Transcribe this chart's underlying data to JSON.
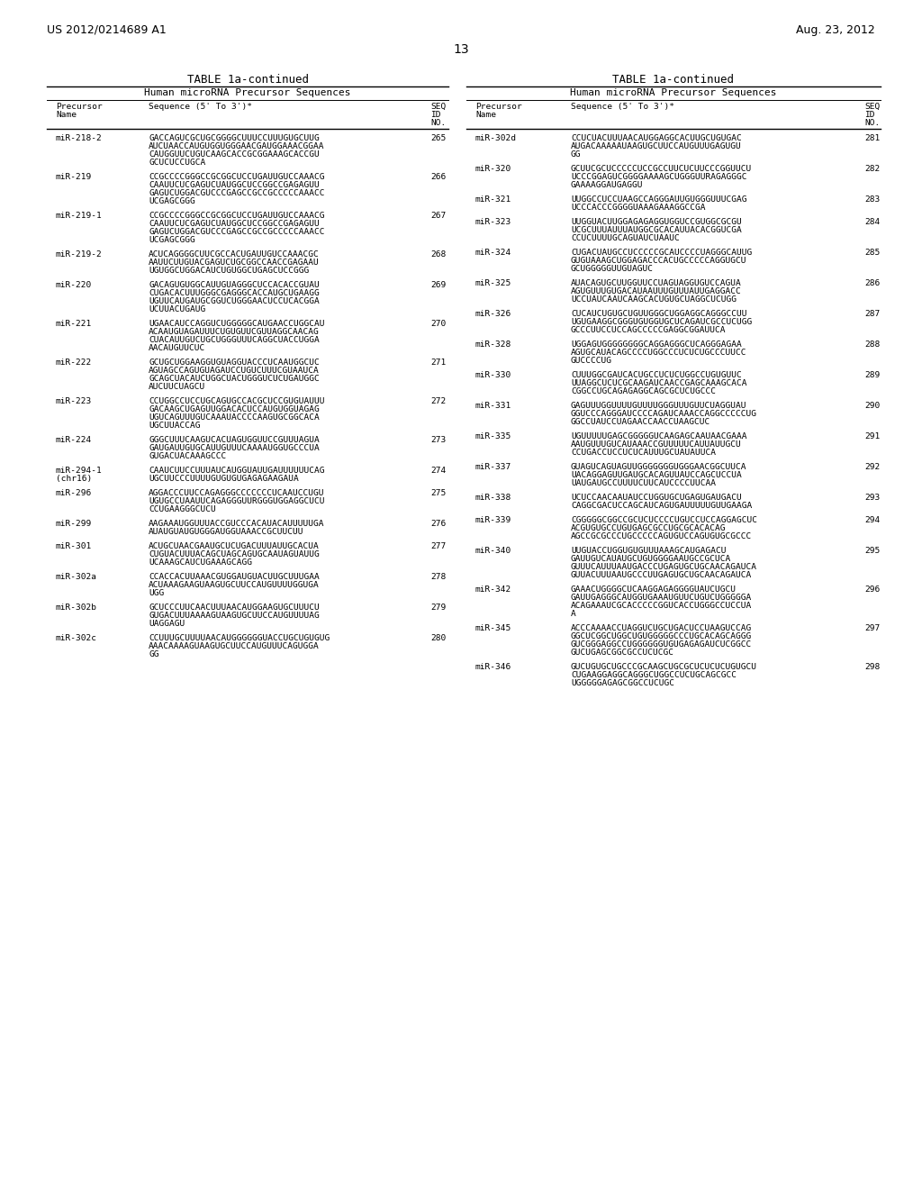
{
  "header_left": "US 2012/0214689 A1",
  "header_right": "Aug. 23, 2012",
  "page_number": "13",
  "table_title": "TABLE 1a-continued",
  "table_subtitle": "Human microRNA Precursor Sequences",
  "left_entries": [
    {
      "name": "miR-218-2",
      "seq_lines": [
        "GACCAGUCGCUGCGGGGCUUUCCUUUGUGCUUG",
        "AUCUAACCAUGUGGUGGGAACGAUGGAAACGGAA",
        "CAUGGUUCUGUCAAGCACCGCGGAAAGCACCGU",
        "GCUCUCCUGCA"
      ],
      "seq_id": "265"
    },
    {
      "name": "miR-219",
      "seq_lines": [
        "CCGCCCCGGGCCGCGGCUCCUGAUUGUCCAAACG",
        "CAAUUCUCGAGUCUAUGGCUCCGGCCGAGAGUU",
        "GAGUCUGGACGUCCCGAGCCGCCGCCCCCAAACC",
        "UCGAGCGGG"
      ],
      "seq_id": "266"
    },
    {
      "name": "miR-219-1",
      "seq_lines": [
        "CCGCCCCGGGCCGCGGCUCCUGAUUGUCCAAACG",
        "CAAUUCUCGAGUCUAUGGCUCCGGCCGAGAGUU",
        "GAGUCUGGACGUCCCGAGCCGCCGCCCCCAAACC",
        "UCGAGCGGG"
      ],
      "seq_id": "267"
    },
    {
      "name": "miR-219-2",
      "seq_lines": [
        "ACUCAGGGGCUUCGCCACUGAUUGUCCAAACGC",
        "AAUUCUUGUACGAGUCUGCGGCCAACCGAGAAU",
        "UGUGGCUGGACAUCUGUGGCUGAGCUCCGGG"
      ],
      "seq_id": "268"
    },
    {
      "name": "miR-220",
      "seq_lines": [
        "GACAGUGUGGCAUUGUAGGGCUCCACACCGUAU",
        "CUGACACUUUGGGCGAGGGCACCAUGCUGAAGG",
        "UGUUCAUGAUGCGGUCUGGGAACUCCUCACGGA",
        "UCUUACUGAUG"
      ],
      "seq_id": "269"
    },
    {
      "name": "miR-221",
      "seq_lines": [
        "UGAACAUCCAGGUCUGGGGGCAUGAACCUGGCAU",
        "ACAAUGUAGAUUUCUGUGUUCGUUAGGCAACAG",
        "CUACAUUGUCUGCUGGGUUUCAGGCUACCUGGA",
        "AACAUGUUCUC"
      ],
      "seq_id": "270"
    },
    {
      "name": "miR-222",
      "seq_lines": [
        "GCUGCUGGAAGGUGUAGGUACCCUCAAUGGCUC",
        "AGUAGCCAGUGUAGAUCCUGUCUUUCGUAAUCA",
        "GCAGCUACAUCUGGCUACUGGGUCUCUGAUGGC",
        "AUCUUCUAGCU"
      ],
      "seq_id": "271"
    },
    {
      "name": "miR-223",
      "seq_lines": [
        "CCUGGCCUCCUGCAGUGCCACGCUCCGUGUAUUU",
        "GACAAGCUGAGUUGGACACUCCAUGUGGUAGAG",
        "UGUCAGUUUGUCAAAUACCCCAAGUGCGGCACA",
        "UGCUUACCAG"
      ],
      "seq_id": "272"
    },
    {
      "name": "miR-224",
      "seq_lines": [
        "GGGCUUUCAAGUCACUAGUGGUUCCGUUUAGUA",
        "GAUGAUUGUGCAUUGUUUCAAAAUGGUGCCCUA",
        "GUGACUACAAAGCCC"
      ],
      "seq_id": "273"
    },
    {
      "name": "miR-294-1\n(chr16)",
      "seq_lines": [
        "CAAUCUUCCUUUAUCAUGGUAUUGAUUUUUUCAG",
        "UGCUUCCCUUUUGUGUGUGAGAGAAGAUA"
      ],
      "seq_id": "274"
    },
    {
      "name": "miR-296",
      "seq_lines": [
        "AGGACCCUUCCAGAGGGCCCCCCCUCAAUCCUGU",
        "UGUGCCUAAUUCAGAGGGUURGGGUGGAGGCUCU",
        "CCUGAAGGGCUCU"
      ],
      "seq_id": "275"
    },
    {
      "name": "miR-299",
      "seq_lines": [
        "AAGAAAUGGUUUACCGUCCCACAUACAUUUUUGA",
        "AUAUGUAUGUGGGAUGGUAAACCGCUUCUU"
      ],
      "seq_id": "276"
    },
    {
      "name": "miR-301",
      "seq_lines": [
        "ACUGCUAACGAAUGCUCUGACUUUAUUGCACUA",
        "CUGUACUUUACAGCUAGCAGUGCAAUAGUAUUG",
        "UCAAAGCAUCUGAAAGCAGG"
      ],
      "seq_id": "277"
    },
    {
      "name": "miR-302a",
      "seq_lines": [
        "CCACCACUUAAACGUGGAUGUACUUGCUUUGAA",
        "ACUAAAGAAGUAAGUGCUUCCAUGUUUUGGUGA",
        "UGG"
      ],
      "seq_id": "278"
    },
    {
      "name": "miR-302b",
      "seq_lines": [
        "GCUCCCUUCAACUUUAACAUGGAAGUGCUUUCU",
        "GUGACUUUAAAAGUAAGUGCUUCCAUGUUUUAG",
        "UAGGAGU"
      ],
      "seq_id": "279"
    },
    {
      "name": "miR-302c",
      "seq_lines": [
        "CCUUUGCUUUUAACAUGGGGGGUACCUGCUGUGUG",
        "AAACAAAAGUAAGUGCUUCCAUGUUUCAGUGGA",
        "GG"
      ],
      "seq_id": "280"
    }
  ],
  "right_entries": [
    {
      "name": "miR-302d",
      "seq_lines": [
        "CCUCUACUUUAACAUGGAGGCACUUGCUGUGAC",
        "AUGACAAAAAUAAGUGCUUCCAUGUUUGAGUGU",
        "GG"
      ],
      "seq_id": "281"
    },
    {
      "name": "miR-320",
      "seq_lines": [
        "GCUUCGCUCCCCCUCCGCCUUCUCUUCCCGGUUCU",
        "UCCCGGAGUCGGGGAAAAGCUGGGUURAGAGGGC",
        "GAAAAGGAUGAGGU"
      ],
      "seq_id": "282"
    },
    {
      "name": "miR-321",
      "seq_lines": [
        "UUGGCCUCCUAAGCCAGGGAUUGUGGGUUUCGAG",
        "UCCCACCCGGGGUAAAGAAAGGCCGA"
      ],
      "seq_id": "283"
    },
    {
      "name": "miR-323",
      "seq_lines": [
        "UUGGUACUUGGAGAGAGGUGGUCCGUGGCGCGU",
        "UCGCUUUAUUUAUGGCGCACAUUACACGGUCGA",
        "CCUCUUUUGCAGUAUCUAAUC"
      ],
      "seq_id": "284"
    },
    {
      "name": "miR-324",
      "seq_lines": [
        "CUGACUAUGCCUCCCCCGCAUCCCCUAGGGCAUUG",
        "GUGUAAAGCUGGAGACCCACUGCCCCCAGGUGCU",
        "GCUGGGGGUUGUAGUC"
      ],
      "seq_id": "285"
    },
    {
      "name": "miR-325",
      "seq_lines": [
        "AUACAGUGCUUGGUUCCUAGUAGGUGUCCAGUA",
        "AGUGUUUGUGACAUAAUUUGUUUAUUGAGGACC",
        "UCCUAUCAAUCAAGCACUGUGCUAGGCUCUGG"
      ],
      "seq_id": "286"
    },
    {
      "name": "miR-326",
      "seq_lines": [
        "CUCAUCUGUGCUGUUGGGCUGGAGGCAGGGCCUU",
        "UGUGAAGGCGGGUGUGGUGCUCAGAUCGCCUCUGG",
        "GCCCUUCCUCCAGCCCCCGAGGCGGAUUCA"
      ],
      "seq_id": "287"
    },
    {
      "name": "miR-328",
      "seq_lines": [
        "UGGAGUGGGGGGGGCAGGAGGGCUCAGGGAGAA",
        "AGUGCAUACAGCCCCUGGCCCUCUCUGCCCUUCC",
        "GUCCCCUG"
      ],
      "seq_id": "288"
    },
    {
      "name": "miR-330",
      "seq_lines": [
        "CUUUGGCGAUCACUGCCUCUCUGGCCUGUGUUC",
        "UUAGGCUCUCGCAAGAUCAACCGAGCAAAGCACA",
        "CGGCCUGCAGAGAGGCAGCGCUCUGCCC"
      ],
      "seq_id": "289"
    },
    {
      "name": "miR-331",
      "seq_lines": [
        "GAGUUUGGUUUUGUUUUGGGUUUGUUCUAGGUAU",
        "GGUCCCAGGGAUCCCCAGAUCAAACCAGGCCCCCUG",
        "GGCCUAUCCUAGAACCAACCUAAGCUC"
      ],
      "seq_id": "290"
    },
    {
      "name": "miR-335",
      "seq_lines": [
        "UGUUUUUGAGCGGGGGUCAAGAGCAAUAACGAAA",
        "AAUGUUUGUCAUAAACCGUUUUUCAUUAUUGCU",
        "CCUGACCUCCUCUCAUUUGCUAUAUUCA"
      ],
      "seq_id": "291"
    },
    {
      "name": "miR-337",
      "seq_lines": [
        "GUAGUCAGUAGUUGGGGGGGUGGGAACGGCUUCA",
        "UACAGGAGUUGAUGCACAGUUAUCCAGCUCCUA",
        "UAUGAUGCCUUUUCUUCAUCCCCUUCAA"
      ],
      "seq_id": "292"
    },
    {
      "name": "miR-338",
      "seq_lines": [
        "UCUCCAACAAUAUCCUGGUGCUGAGUGAUGACU",
        "CAGGCGACUCCAGCAUCAGUGAUUUUUGUUGAAGA"
      ],
      "seq_id": "293"
    },
    {
      "name": "miR-339",
      "seq_lines": [
        "CGGGGGCGGCCGCUCUCCCCUGUCCUCCAGGAGCUC",
        "ACGUGUGCCUGUGAGCGCCUGCGCACACAG",
        "AGCCGCGCCCUGCCCCCAGUGUCCAGUGUGCGCCC"
      ],
      "seq_id": "294"
    },
    {
      "name": "miR-340",
      "seq_lines": [
        "UUGUACCUGGUGUGUUUAAAGCAUGAGACU",
        "GAUUGUCAUAUGCUGUGGGGAAUGCCGCUCA",
        "GUUUCAUUUAAUGACCCUGAGUGCUGCAACAGAUCA",
        "GUUACUUUAAUGCCCUUGAGUGCUGCAACAGAUCA"
      ],
      "seq_id": "295"
    },
    {
      "name": "miR-342",
      "seq_lines": [
        "GAAACUGGGGCUCAAGGAGAGGGGUAUCUGCU",
        "GAUUGAGGGCAUGGUGAAAUGUUCUGUCUGGGGGA",
        "ACAGAAAUCGCACCCCCGGUCACCUGGGCCUCCUA",
        "A"
      ],
      "seq_id": "296"
    },
    {
      "name": "miR-345",
      "seq_lines": [
        "ACCCAAAACCUAGGUCUGCUGACUCCUAAGUCCAG",
        "GGCUCGGCUGGCUGUGGGGGCCCUGCACAGCAGGG",
        "GUCGGGAGGCCUGGGGGGUGUGAGAGAUCUCGGCC",
        "GUCUGAGCGGCGCCUCUCGC"
      ],
      "seq_id": "297"
    },
    {
      "name": "miR-346",
      "seq_lines": [
        "GUCUGUGCUGCCCGCAAGCUGCGCUCUCUCUGUGCU",
        "CUGAAGGAGGCAGGGCUGGCCUCUGCAGCGCC",
        "UGGGGGAGAGCGGCCUCUGC"
      ],
      "seq_id": "298"
    }
  ]
}
